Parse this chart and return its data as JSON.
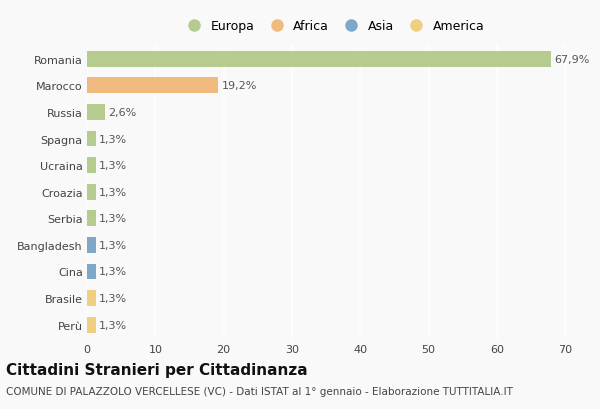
{
  "countries": [
    "Romania",
    "Marocco",
    "Russia",
    "Spagna",
    "Ucraina",
    "Croazia",
    "Serbia",
    "Bangladesh",
    "Cina",
    "Brasile",
    "Perù"
  ],
  "values": [
    67.9,
    19.2,
    2.6,
    1.3,
    1.3,
    1.3,
    1.3,
    1.3,
    1.3,
    1.3,
    1.3
  ],
  "labels": [
    "67,9%",
    "19,2%",
    "2,6%",
    "1,3%",
    "1,3%",
    "1,3%",
    "1,3%",
    "1,3%",
    "1,3%",
    "1,3%",
    "1,3%"
  ],
  "continents": [
    "Europa",
    "Africa",
    "Europa",
    "Europa",
    "Europa",
    "Europa",
    "Europa",
    "Asia",
    "Asia",
    "America",
    "America"
  ],
  "colors": {
    "Europa": "#b5cc8e",
    "Africa": "#f0b97d",
    "Asia": "#7fa8c8",
    "America": "#f0d080"
  },
  "legend_order": [
    "Europa",
    "Africa",
    "Asia",
    "America"
  ],
  "xlim": [
    0,
    72
  ],
  "xticks": [
    0,
    10,
    20,
    30,
    40,
    50,
    60,
    70
  ],
  "title": "Cittadini Stranieri per Cittadinanza",
  "subtitle": "COMUNE DI PALAZZOLO VERCELLESE (VC) - Dati ISTAT al 1° gennaio - Elaborazione TUTTITALIA.IT",
  "background_color": "#f9f9f9",
  "bar_height": 0.6,
  "label_fontsize": 8,
  "title_fontsize": 11,
  "subtitle_fontsize": 7.5,
  "ytick_fontsize": 8,
  "xtick_fontsize": 8,
  "legend_fontsize": 9
}
